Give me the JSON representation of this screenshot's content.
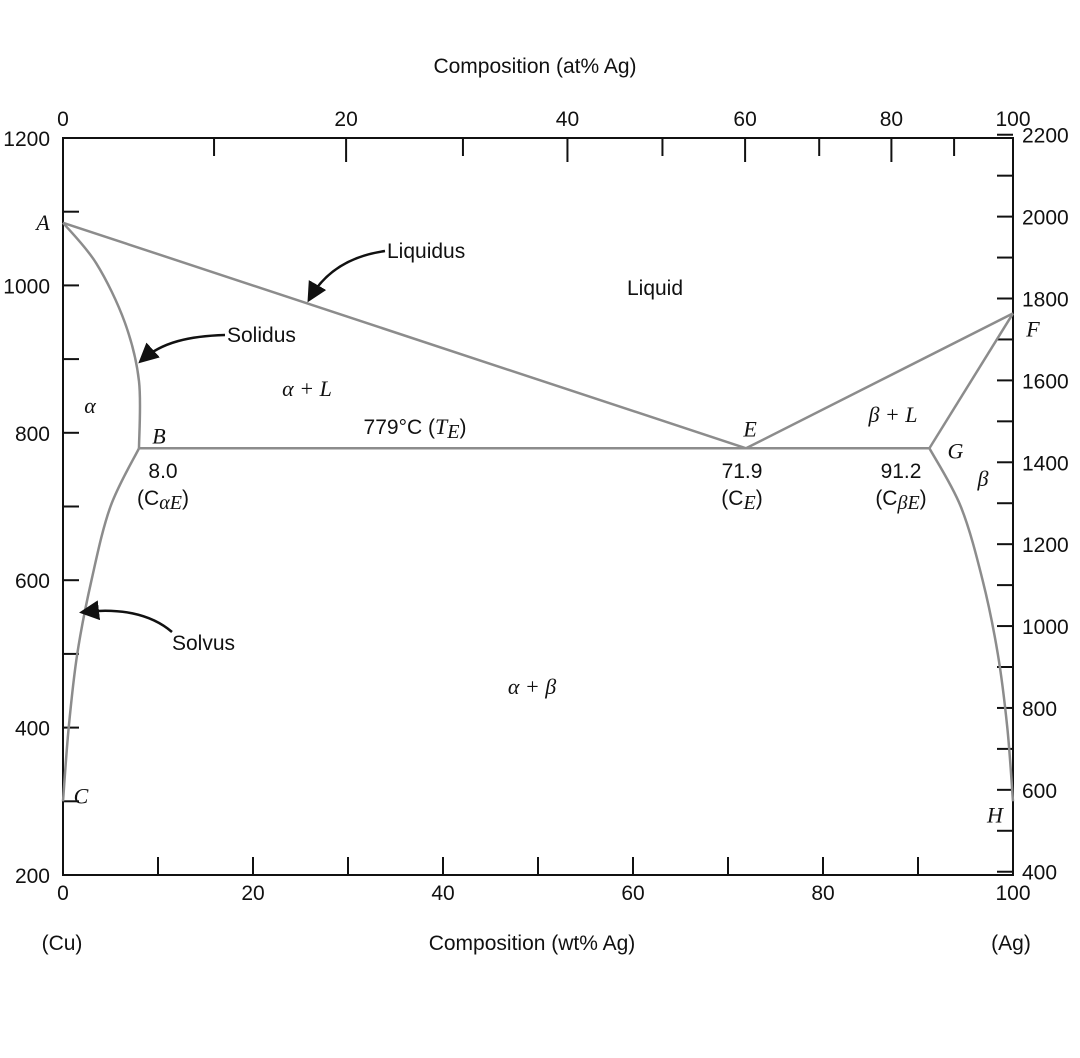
{
  "chart_data": {
    "type": "line",
    "x_axis_bottom": {
      "label": "Composition (wt% Ag)",
      "range": [
        0,
        100
      ],
      "major_ticks": [
        0,
        20,
        40,
        60,
        80,
        100
      ],
      "minor_ticks": [
        10,
        30,
        50,
        70,
        90
      ],
      "end_labels": {
        "left": "(Cu)",
        "right": "(Ag)"
      }
    },
    "x_axis_top": {
      "label": "Composition (at% Ag)",
      "major_ticks": [
        {
          "label": "0",
          "wt": 0
        },
        {
          "label": "20",
          "wt": 29.8
        },
        {
          "label": "40",
          "wt": 53.1
        },
        {
          "label": "60",
          "wt": 71.8
        },
        {
          "label": "80",
          "wt": 87.2
        },
        {
          "label": "100",
          "wt": 100
        }
      ],
      "minor_ticks_wt": [
        15.9,
        42.1,
        63.1,
        79.6,
        93.8
      ]
    },
    "y_axis_left": {
      "unit": "°C",
      "range": [
        200,
        1200
      ],
      "major_ticks": [
        200,
        400,
        600,
        800,
        1000,
        1200
      ],
      "minor_ticks": [
        300,
        500,
        700,
        900,
        1100
      ]
    },
    "y_axis_right": {
      "unit": "°F",
      "range": [
        392,
        2192
      ],
      "major_ticks": [
        400,
        600,
        800,
        1000,
        1200,
        1400,
        1600,
        1800,
        2000,
        2200
      ],
      "minor_ticks": [
        500,
        700,
        900,
        1100,
        1300,
        1500,
        1700,
        1900,
        2100
      ]
    },
    "points": {
      "A": {
        "label": "A",
        "wt": 0,
        "T": 1085
      },
      "B": {
        "label": "B",
        "wt": 8.0,
        "T": 779
      },
      "C": {
        "label": "C",
        "wt": 0,
        "T": 300
      },
      "E": {
        "label": "E",
        "wt": 71.9,
        "T": 779
      },
      "F": {
        "label": "F",
        "wt": 100,
        "T": 962
      },
      "G": {
        "label": "G",
        "wt": 91.2,
        "T": 779
      },
      "H": {
        "label": "H",
        "wt": 100,
        "T": 300
      }
    },
    "curves": [
      {
        "name": "liquidus_left",
        "points": [
          [
            0,
            1085
          ],
          [
            71.9,
            779
          ]
        ]
      },
      {
        "name": "liquidus_right",
        "points": [
          [
            71.9,
            779
          ],
          [
            100,
            962
          ]
        ]
      },
      {
        "name": "solidus_left",
        "points": [
          [
            0,
            1085
          ],
          [
            3.5,
            1030
          ],
          [
            6.5,
            950
          ],
          [
            8.0,
            870
          ],
          [
            8.0,
            779
          ]
        ]
      },
      {
        "name": "solidus_right",
        "points": [
          [
            91.2,
            779
          ],
          [
            100,
            962
          ]
        ]
      },
      {
        "name": "eutectic_isotherm",
        "points": [
          [
            8.0,
            779
          ],
          [
            91.2,
            779
          ]
        ]
      },
      {
        "name": "solvus_left",
        "points": [
          [
            8.0,
            779
          ],
          [
            5.0,
            700
          ],
          [
            3.0,
            600
          ],
          [
            1.5,
            500
          ],
          [
            0.6,
            400
          ],
          [
            0,
            300
          ]
        ]
      },
      {
        "name": "solvus_right",
        "points": [
          [
            91.2,
            779
          ],
          [
            94.5,
            700
          ],
          [
            96.8,
            600
          ],
          [
            98.4,
            500
          ],
          [
            99.4,
            400
          ],
          [
            100,
            300
          ]
        ]
      }
    ],
    "annotations": {
      "liquidus": "Liquidus",
      "solidus": "Solidus",
      "solvus": "Solvus",
      "eutectic_temp": "779°C (",
      "eutectic_temp_sym": "T",
      "eutectic_temp_sub": "E",
      "eutectic_temp_close": ")",
      "c_alpha_e_value": "8.0",
      "c_alpha_e_label": "(C",
      "c_alpha_e_sub": "αE",
      "c_e_value": "71.9",
      "c_e_label": "(C",
      "c_e_sub": "E",
      "c_beta_e_value": "91.2",
      "c_beta_e_label": "(C",
      "c_beta_e_sub": "βE",
      "close_paren": ")"
    },
    "regions": {
      "liquid": "Liquid",
      "alpha": "α",
      "alpha_liquid": "α + L",
      "beta_liquid": "β + L",
      "beta": "β",
      "alpha_beta": "α + β"
    }
  }
}
